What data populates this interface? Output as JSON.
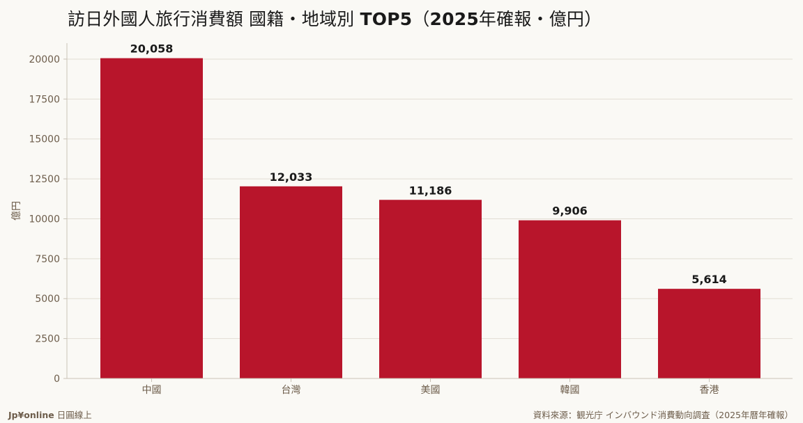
{
  "title": {
    "part1": "訪日外國人旅行消費額 國籍・地域別 ",
    "part2": "TOP5",
    "part3": "（",
    "part4": "2025",
    "part5": "年確報・億円）"
  },
  "footer": {
    "brand": "Jp¥online",
    "brand_suffix": " 日圓線上",
    "source": "資料來源：観光庁 インバウンド消費動向調査（2025年暦年確報）"
  },
  "colors": {
    "bar": "#b8152b",
    "grid": "#e2ddd3",
    "axis": "#c9c2b6",
    "tick_text": "#6d5d4b",
    "label_text": "#1a1a1a"
  },
  "chart_data": {
    "type": "bar",
    "categories": [
      "中國",
      "台灣",
      "美國",
      "韓國",
      "香港"
    ],
    "values": [
      20058,
      12033,
      11186,
      9906,
      5614
    ],
    "data_labels": [
      "20,058",
      "12,033",
      "11,186",
      "9,906",
      "5,614"
    ],
    "ylabel": "億円",
    "ylim": [
      0,
      21000
    ],
    "yticks": [
      0,
      2500,
      5000,
      7500,
      10000,
      12500,
      15000,
      17500,
      20000
    ],
    "grid": true,
    "legend": "none"
  }
}
